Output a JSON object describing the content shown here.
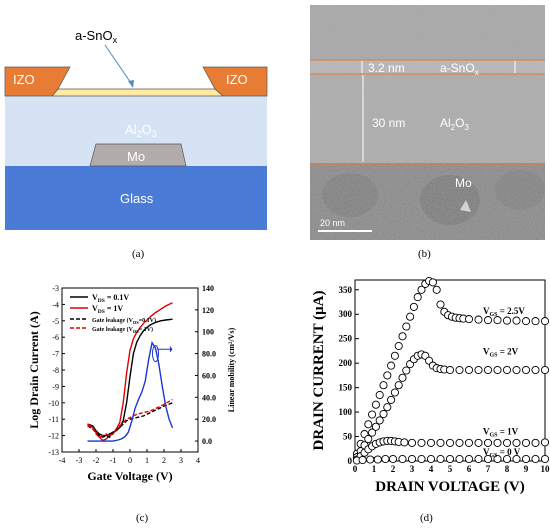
{
  "panels": {
    "a": {
      "label": "(a)",
      "layers": {
        "film": "a-SnO",
        "film_sub": "x",
        "contact_left": "IZO",
        "contact_right": "IZO",
        "dielectric": "Al",
        "dielectric_sub2": "2",
        "dielectric_o": "O",
        "dielectric_sub3": "3",
        "gate": "Mo",
        "substrate": "Glass"
      },
      "colors": {
        "izo": "#e97c35",
        "film": "#ffe9a3",
        "dielectric": "#d6e3f4",
        "gate": "#b3acac",
        "glass": "#4a7bd6"
      }
    },
    "b": {
      "label": "(b)",
      "thickness_top": "3.2 nm",
      "film": "a-SnO",
      "film_sub": "x",
      "thickness_mid": "30 nm",
      "dielectric": "Al",
      "dielectric_sub2": "2",
      "dielectric_o": "O",
      "dielectric_sub3": "3",
      "gate": "Mo",
      "scale": "20 nm"
    },
    "c": {
      "label": "(c)"
    },
    "d": {
      "label": "(d)"
    }
  },
  "chart_data": [
    {
      "type": "line",
      "panel": "c",
      "xlabel": "Gate Voltage (V)",
      "ylabel": "Log Drain Current (A)",
      "y2label": "Linear mobility (cm²/Vs)",
      "xlim": [
        -4,
        4
      ],
      "ylim": [
        -13,
        -3
      ],
      "y2lim": [
        -10,
        140
      ],
      "xticks": [
        "-4",
        "-3",
        "-2",
        "-1",
        "0",
        "1",
        "2",
        "3",
        "4"
      ],
      "yticks": [
        "-13",
        "-12",
        "-11",
        "-10",
        "-9",
        "-8",
        "-7",
        "-6",
        "-5",
        "-4",
        "-3"
      ],
      "y2ticks": [
        "0.0",
        "20.0",
        "40.0",
        "60.0",
        "80.0",
        "100",
        "120",
        "140"
      ],
      "legend": [
        {
          "label_main": "V",
          "label_sub": "DS",
          "label_rest": " = 0.1V",
          "color": "#000000",
          "dash": false
        },
        {
          "label_main": "V",
          "label_sub": "DS",
          "label_rest": " = 1V",
          "color": "#e00000",
          "dash": false
        },
        {
          "label_main": "Gate leakage (V",
          "label_sub": "DS",
          "label_rest": "=0.1V)",
          "color": "#000000",
          "dash": true
        },
        {
          "label_main": "Gate leakage (V",
          "label_sub": "DS",
          "label_rest": "= 1V)",
          "color": "#e00000",
          "dash": true
        }
      ],
      "series": [
        {
          "color": "#000000",
          "dash": false,
          "axis": "left",
          "x": [
            -2.5,
            -2.2,
            -2.0,
            -1.8,
            -1.6,
            -1.4,
            -1.2,
            -1.0,
            -0.8,
            -0.6,
            -0.4,
            -0.2,
            0.0,
            0.2,
            0.4,
            0.6,
            0.8,
            1.0,
            1.2,
            1.5,
            1.8,
            2.1,
            2.5
          ],
          "y": [
            -11.3,
            -11.4,
            -11.7,
            -11.9,
            -12.0,
            -12.0,
            -11.9,
            -11.8,
            -11.7,
            -11.5,
            -11.1,
            -10.0,
            -8.4,
            -7.0,
            -6.3,
            -5.9,
            -5.6,
            -5.4,
            -5.25,
            -5.1,
            -5.0,
            -4.95,
            -4.9
          ]
        },
        {
          "color": "#e00000",
          "dash": false,
          "axis": "left",
          "x": [
            -2.5,
            -2.2,
            -2.0,
            -1.8,
            -1.6,
            -1.4,
            -1.2,
            -1.0,
            -0.8,
            -0.6,
            -0.4,
            -0.2,
            0.0,
            0.2,
            0.4,
            0.6,
            0.8,
            1.0,
            1.2,
            1.5,
            1.8,
            2.1,
            2.5
          ],
          "y": [
            -11.3,
            -11.5,
            -11.8,
            -12.1,
            -12.3,
            -12.2,
            -12.0,
            -11.9,
            -11.6,
            -11.2,
            -10.0,
            -8.2,
            -6.8,
            -6.1,
            -5.7,
            -5.4,
            -5.15,
            -4.95,
            -4.75,
            -4.5,
            -4.3,
            -4.1,
            -3.9
          ]
        },
        {
          "color": "#000000",
          "dash": true,
          "axis": "left",
          "x": [
            -2.5,
            -2.2,
            -2.0,
            -1.8,
            -1.6,
            -1.4,
            -1.2,
            -1.0,
            -0.8,
            -0.6,
            -0.4,
            -0.2,
            0.0,
            0.4,
            0.8,
            1.2,
            1.6,
            2.0,
            2.5
          ],
          "y": [
            -11.4,
            -11.6,
            -11.8,
            -12.0,
            -12.1,
            -12.0,
            -12.1,
            -11.8,
            -11.6,
            -11.5,
            -11.3,
            -11.1,
            -11.0,
            -10.9,
            -10.8,
            -10.6,
            -10.4,
            -10.2,
            -10.0
          ]
        },
        {
          "color": "#e00000",
          "dash": true,
          "axis": "left",
          "x": [
            -2.5,
            -2.2,
            -2.0,
            -1.8,
            -1.6,
            -1.4,
            -1.2,
            -1.0,
            -0.8,
            -0.6,
            -0.4,
            -0.2,
            0.0,
            0.4,
            0.8,
            1.2,
            1.6,
            2.0,
            2.5
          ],
          "y": [
            -11.4,
            -11.5,
            -11.9,
            -12.1,
            -12.0,
            -11.9,
            -12.0,
            -11.9,
            -11.6,
            -11.4,
            -11.2,
            -11.0,
            -10.9,
            -10.7,
            -10.6,
            -10.5,
            -10.3,
            -10.1,
            -9.8
          ]
        },
        {
          "color": "#1a35d8",
          "dash": false,
          "axis": "right",
          "x": [
            -2.5,
            -2.0,
            -1.5,
            -1.0,
            -0.7,
            -0.5,
            -0.3,
            -0.1,
            0.1,
            0.3,
            0.5,
            0.7,
            0.9,
            1.1,
            1.3,
            1.5,
            1.7,
            1.9,
            2.1,
            2.3,
            2.5
          ],
          "y": [
            0,
            0,
            0,
            0,
            1,
            2,
            4,
            8,
            18,
            30,
            38,
            45,
            55,
            75,
            90,
            85,
            70,
            50,
            32,
            20,
            12
          ]
        }
      ],
      "annotation": "arrow pointing to right axis"
    },
    {
      "type": "scatter",
      "panel": "d",
      "xlabel": "DRAIN VOLTAGE (V)",
      "ylabel_main": "DRAIN CURRENT (",
      "ylabel_mu": "μ",
      "ylabel_end": "A)",
      "xlim": [
        0,
        10
      ],
      "ylim": [
        0,
        370
      ],
      "xticks": [
        "0",
        "1",
        "2",
        "3",
        "4",
        "5",
        "6",
        "7",
        "8",
        "9",
        "10"
      ],
      "yticks": [
        "0",
        "50",
        "100",
        "150",
        "200",
        "250",
        "300",
        "350"
      ],
      "series": [
        {
          "name_main": "V",
          "name_sub": "GS",
          "name_rest": " = 2.5V",
          "x": [
            0.1,
            0.3,
            0.5,
            0.7,
            0.9,
            1.1,
            1.3,
            1.5,
            1.7,
            1.9,
            2.1,
            2.3,
            2.5,
            2.7,
            2.9,
            3.1,
            3.3,
            3.5,
            3.7,
            3.9,
            4.1,
            4.3,
            4.5,
            4.7,
            4.9,
            5.1,
            5.3,
            5.5,
            5.7,
            6.0,
            6.5,
            7.0,
            7.5,
            8.0,
            8.5,
            9.0,
            9.5,
            10.0
          ],
          "y": [
            15,
            35,
            55,
            75,
            95,
            115,
            135,
            155,
            175,
            195,
            215,
            235,
            255,
            275,
            295,
            315,
            335,
            350,
            362,
            368,
            365,
            350,
            320,
            305,
            298,
            295,
            293,
            292,
            291,
            290,
            289,
            288,
            288,
            287,
            287,
            286,
            286,
            286
          ]
        },
        {
          "name_main": "V",
          "name_sub": "GS",
          "name_rest": " = 2V",
          "x": [
            0.1,
            0.3,
            0.5,
            0.7,
            0.9,
            1.1,
            1.3,
            1.5,
            1.7,
            1.9,
            2.1,
            2.3,
            2.5,
            2.7,
            2.9,
            3.1,
            3.3,
            3.5,
            3.7,
            3.9,
            4.1,
            4.3,
            4.5,
            4.7,
            5.0,
            5.5,
            6.0,
            6.5,
            7.0,
            7.5,
            8.0,
            8.5,
            9.0,
            9.5,
            10.0
          ],
          "y": [
            8,
            20,
            32,
            45,
            58,
            70,
            83,
            96,
            110,
            125,
            140,
            155,
            170,
            185,
            198,
            208,
            215,
            218,
            215,
            205,
            195,
            190,
            188,
            187,
            186,
            186,
            186,
            186,
            186,
            186,
            186,
            186,
            186,
            186,
            186
          ]
        },
        {
          "name_main": "V",
          "name_sub": "GS",
          "name_rest": " = 1V",
          "x": [
            0.1,
            0.3,
            0.5,
            0.7,
            0.9,
            1.1,
            1.3,
            1.5,
            1.7,
            1.9,
            2.1,
            2.3,
            2.6,
            3.0,
            3.5,
            4.0,
            4.5,
            5.0,
            5.5,
            6.0,
            6.5,
            7.0,
            7.5,
            8.0,
            8.5,
            9.0,
            9.5,
            10.0
          ],
          "y": [
            3,
            10,
            17,
            24,
            30,
            35,
            38,
            40,
            41,
            41,
            40,
            39,
            38,
            37,
            37,
            37,
            37,
            37,
            37,
            37,
            37,
            37,
            37,
            37,
            37,
            37,
            37,
            38
          ]
        },
        {
          "name_main": "V",
          "name_sub": "GS",
          "name_rest": " = 0 V",
          "x": [
            0.1,
            0.4,
            0.8,
            1.2,
            1.6,
            2.0,
            2.5,
            3.0,
            3.5,
            4.0,
            4.5,
            5.0,
            5.5,
            6.0,
            6.5,
            7.0,
            7.5,
            8.0,
            8.5,
            9.0,
            9.5,
            10.0
          ],
          "y": [
            1,
            2,
            3,
            3,
            4,
            4,
            4,
            4,
            4,
            4,
            4,
            4,
            4,
            4,
            4,
            4,
            4,
            4,
            4,
            4,
            4,
            4
          ]
        }
      ]
    }
  ]
}
